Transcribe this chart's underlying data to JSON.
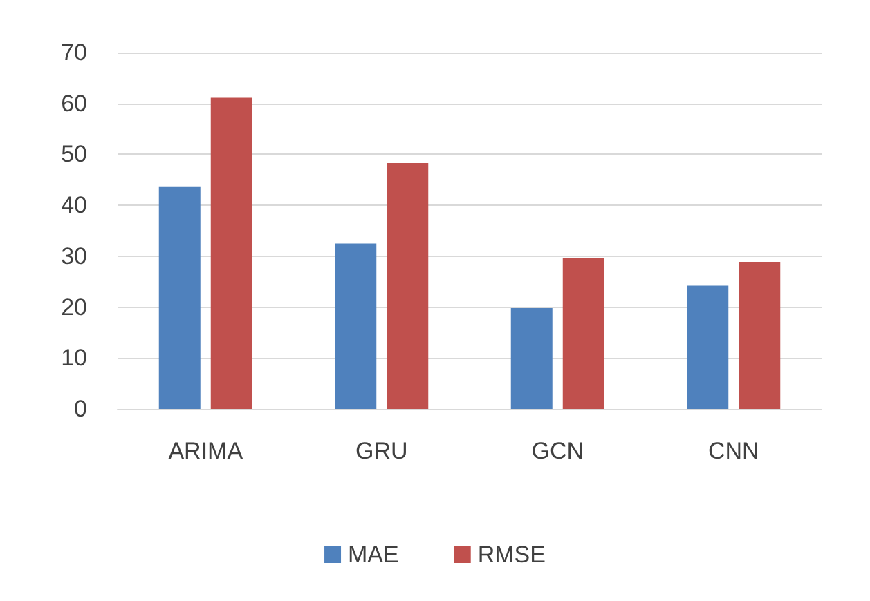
{
  "chart_data": {
    "type": "bar",
    "categories": [
      "ARIMA",
      "GRU",
      "GCN",
      "CNN"
    ],
    "series": [
      {
        "name": "MAE",
        "color": "#4f81bd",
        "values": [
          43.7,
          32.5,
          19.8,
          24.2
        ]
      },
      {
        "name": "RMSE",
        "color": "#c0504d",
        "values": [
          61.1,
          48.3,
          29.7,
          28.9
        ]
      }
    ],
    "ylim": [
      0,
      70
    ],
    "yticks": [
      0,
      10,
      20,
      30,
      40,
      50,
      60,
      70
    ],
    "grid": "y",
    "legend": "bottom"
  }
}
